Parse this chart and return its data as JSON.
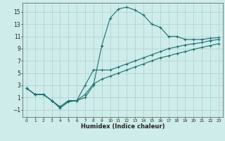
{
  "xlabel": "Humidex (Indice chaleur)",
  "xlim": [
    -0.5,
    23.5
  ],
  "ylim": [
    -2.2,
    16.5
  ],
  "xticks": [
    0,
    1,
    2,
    3,
    4,
    5,
    6,
    7,
    8,
    9,
    10,
    11,
    12,
    13,
    14,
    15,
    16,
    17,
    18,
    19,
    20,
    21,
    22,
    23
  ],
  "yticks": [
    -1,
    1,
    3,
    5,
    7,
    9,
    11,
    13,
    15
  ],
  "bg_color": "#cdecea",
  "grid_color": "#aecece",
  "line_color": "#1e7070",
  "line1_x": [
    0,
    1,
    2,
    3,
    4,
    5,
    6,
    7,
    8,
    9,
    10,
    11,
    12,
    13,
    14,
    15,
    16,
    17,
    18,
    19,
    20,
    21,
    22,
    23
  ],
  "line1_y": [
    2.5,
    1.5,
    1.5,
    0.5,
    -0.5,
    0.5,
    0.5,
    1.0,
    3.0,
    9.5,
    14.0,
    15.5,
    15.8,
    15.3,
    14.5,
    13.0,
    12.5,
    11.0,
    11.0,
    10.5,
    10.5,
    10.5,
    10.7,
    10.8
  ],
  "line2_x": [
    0,
    1,
    2,
    3,
    4,
    5,
    6,
    7,
    8,
    9,
    10,
    11,
    12,
    13,
    14,
    15,
    16,
    17,
    18,
    19,
    20,
    21,
    22,
    23
  ],
  "line2_y": [
    2.5,
    1.5,
    1.5,
    0.5,
    -0.7,
    0.3,
    0.5,
    3.0,
    5.5,
    5.5,
    5.5,
    6.0,
    6.5,
    7.0,
    7.5,
    8.0,
    8.5,
    9.0,
    9.3,
    9.6,
    9.8,
    10.0,
    10.3,
    10.5
  ],
  "line3_x": [
    0,
    1,
    2,
    3,
    4,
    5,
    6,
    7,
    8,
    9,
    10,
    11,
    12,
    13,
    14,
    15,
    16,
    17,
    18,
    19,
    20,
    21,
    22,
    23
  ],
  "line3_y": [
    2.5,
    1.5,
    1.5,
    0.5,
    -0.7,
    0.3,
    0.5,
    1.5,
    3.2,
    4.0,
    4.5,
    5.0,
    5.5,
    6.0,
    6.5,
    7.0,
    7.5,
    7.8,
    8.2,
    8.5,
    8.9,
    9.2,
    9.5,
    9.8
  ]
}
